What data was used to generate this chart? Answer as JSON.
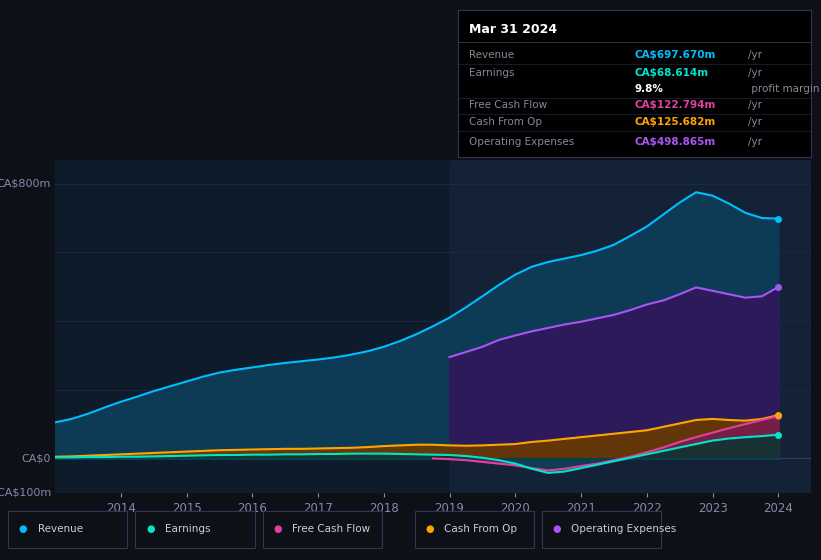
{
  "bg_color": "#0d1117",
  "plot_bg_color": "#0d1b2a",
  "title": "Mar 31 2024",
  "ylabel_top": "CA$800m",
  "ylabel_zero": "CA$0",
  "ylabel_neg": "-CA$100m",
  "years": [
    2013.0,
    2013.25,
    2013.5,
    2013.75,
    2014.0,
    2014.25,
    2014.5,
    2014.75,
    2015.0,
    2015.25,
    2015.5,
    2015.75,
    2016.0,
    2016.25,
    2016.5,
    2016.75,
    2017.0,
    2017.25,
    2017.5,
    2017.75,
    2018.0,
    2018.25,
    2018.5,
    2018.75,
    2019.0,
    2019.25,
    2019.5,
    2019.75,
    2020.0,
    2020.25,
    2020.5,
    2020.75,
    2021.0,
    2021.25,
    2021.5,
    2021.75,
    2022.0,
    2022.25,
    2022.5,
    2022.75,
    2023.0,
    2023.25,
    2023.5,
    2023.75,
    2024.0
  ],
  "revenue": [
    105,
    115,
    130,
    148,
    165,
    180,
    196,
    210,
    224,
    238,
    250,
    258,
    265,
    272,
    278,
    283,
    288,
    294,
    302,
    312,
    325,
    342,
    362,
    385,
    410,
    440,
    472,
    505,
    535,
    558,
    572,
    582,
    592,
    605,
    622,
    648,
    675,
    710,
    745,
    775,
    765,
    742,
    715,
    700,
    698
  ],
  "earnings": [
    3,
    3,
    4,
    4,
    5,
    5,
    6,
    7,
    8,
    9,
    10,
    10,
    11,
    11,
    12,
    12,
    13,
    13,
    14,
    14,
    14,
    13,
    12,
    11,
    10,
    7,
    2,
    -5,
    -15,
    -30,
    -42,
    -38,
    -28,
    -18,
    -8,
    2,
    12,
    22,
    32,
    42,
    52,
    58,
    62,
    65,
    69
  ],
  "free_cash_flow": [
    0,
    0,
    0,
    0,
    0,
    0,
    0,
    0,
    0,
    0,
    0,
    0,
    0,
    0,
    0,
    0,
    0,
    0,
    0,
    0,
    0,
    0,
    0,
    0,
    -2,
    -5,
    -10,
    -15,
    -20,
    -28,
    -35,
    -30,
    -22,
    -15,
    -5,
    5,
    18,
    32,
    48,
    62,
    75,
    88,
    100,
    112,
    123
  ],
  "cash_from_op": [
    5,
    6,
    8,
    10,
    12,
    14,
    16,
    18,
    20,
    22,
    24,
    25,
    26,
    27,
    28,
    28,
    29,
    30,
    31,
    33,
    36,
    38,
    40,
    40,
    38,
    37,
    38,
    40,
    42,
    48,
    52,
    57,
    62,
    67,
    72,
    77,
    82,
    92,
    102,
    112,
    115,
    112,
    110,
    115,
    126
  ],
  "operating_expenses": [
    0,
    0,
    0,
    0,
    0,
    0,
    0,
    0,
    0,
    0,
    0,
    0,
    0,
    0,
    0,
    0,
    0,
    0,
    0,
    0,
    0,
    0,
    0,
    0,
    295,
    310,
    325,
    345,
    358,
    370,
    380,
    390,
    398,
    408,
    418,
    432,
    448,
    460,
    478,
    498,
    488,
    478,
    468,
    472,
    499
  ],
  "colors": {
    "revenue_line": "#00bfff",
    "revenue_fill": "#0d3a55",
    "earnings_line": "#00e5cc",
    "earnings_fill_pos": "#0a3530",
    "earnings_fill_neg": "#004455",
    "free_cash_flow_line": "#e040a0",
    "free_cash_flow_fill": "#7a1a50",
    "cash_from_op_line": "#ffa500",
    "cash_from_op_fill": "#6a3a00",
    "operating_expenses_line": "#a855f7",
    "operating_expenses_fill": "#2d1a5a"
  },
  "legend_items": [
    {
      "label": "Revenue",
      "color": "#00bfff"
    },
    {
      "label": "Earnings",
      "color": "#00e5cc"
    },
    {
      "label": "Free Cash Flow",
      "color": "#e040a0"
    },
    {
      "label": "Cash From Op",
      "color": "#ffa500"
    },
    {
      "label": "Operating Expenses",
      "color": "#a855f7"
    }
  ],
  "highlight_start": 2019.0,
  "xlim": [
    2013.0,
    2024.5
  ],
  "ylim": [
    -100,
    870
  ],
  "xtick_years": [
    2014,
    2015,
    2016,
    2017,
    2018,
    2019,
    2020,
    2021,
    2022,
    2023,
    2024
  ],
  "info_box": {
    "title": "Mar 31 2024",
    "rows": [
      {
        "label": "Revenue",
        "value": "CA$697.670m",
        "unit": "/yr",
        "color": "#00bfff"
      },
      {
        "label": "Earnings",
        "value": "CA$68.614m",
        "unit": "/yr",
        "color": "#00e5cc"
      },
      {
        "label": "",
        "value": "9.8%",
        "unit": " profit margin",
        "color": "white"
      },
      {
        "label": "Free Cash Flow",
        "value": "CA$122.794m",
        "unit": "/yr",
        "color": "#e040a0"
      },
      {
        "label": "Cash From Op",
        "value": "CA$125.682m",
        "unit": "/yr",
        "color": "#ffa500"
      },
      {
        "label": "Operating Expenses",
        "value": "CA$498.865m",
        "unit": "/yr",
        "color": "#a855f7"
      }
    ]
  }
}
